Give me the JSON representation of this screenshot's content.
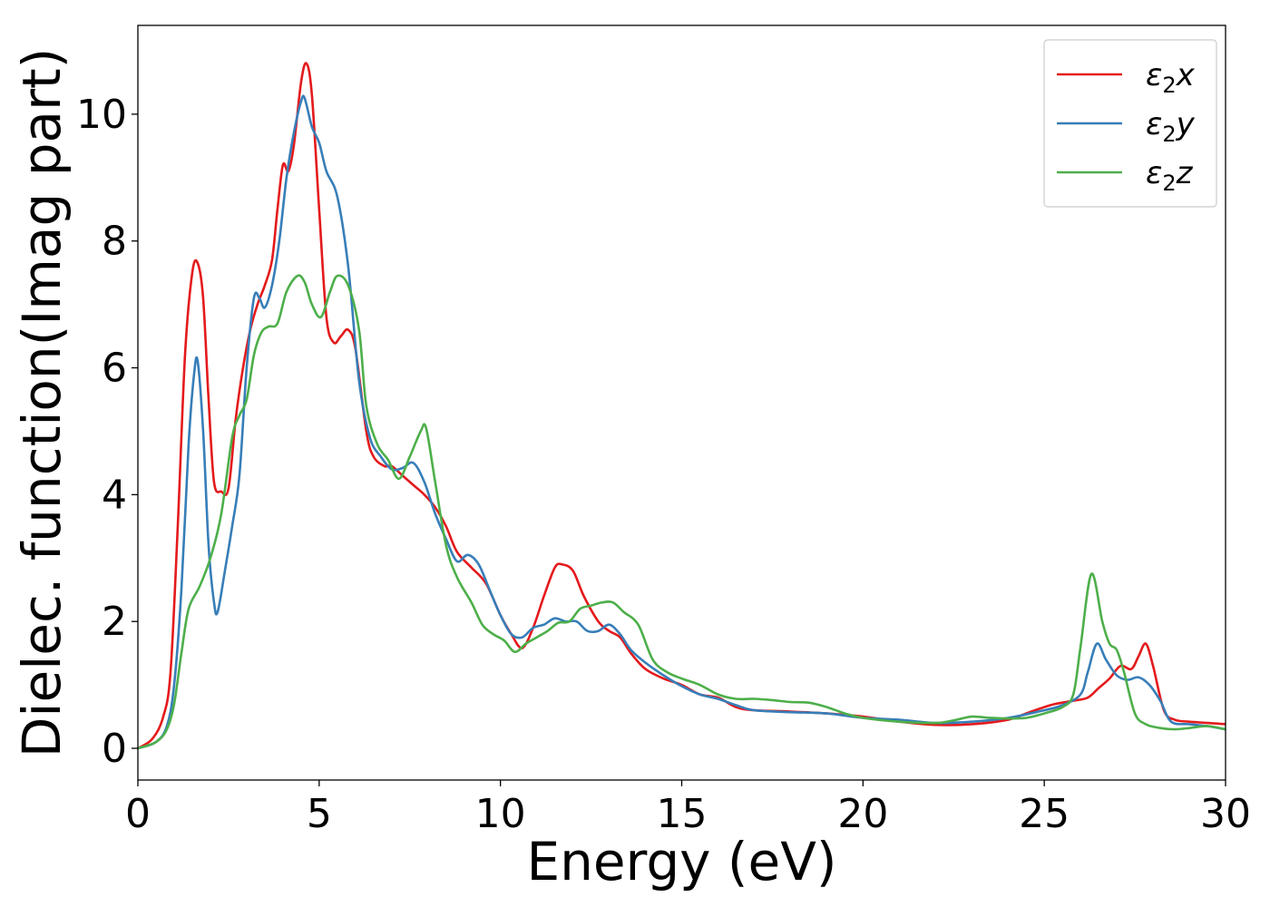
{
  "chart_data": {
    "type": "line",
    "title": "",
    "xlabel": "Energy (eV)",
    "ylabel": "Dielec. function(Imag part)",
    "xlim": [
      0,
      30
    ],
    "ylim": [
      -0.5,
      11.4
    ],
    "xticks": [
      0,
      5,
      10,
      15,
      20,
      25,
      30
    ],
    "yticks": [
      0,
      2,
      4,
      6,
      8,
      10
    ],
    "grid": false,
    "legend_position": "top-right",
    "series": [
      {
        "name": "ε2x",
        "legend": {
          "base": "ε",
          "sub": "2",
          "axis": "x"
        },
        "color": "#e41a1c",
        "points": [
          [
            0,
            0
          ],
          [
            0.4,
            0.15
          ],
          [
            0.7,
            0.5
          ],
          [
            0.9,
            1.2
          ],
          [
            1.1,
            3.5
          ],
          [
            1.3,
            6.2
          ],
          [
            1.5,
            7.5
          ],
          [
            1.65,
            7.65
          ],
          [
            1.8,
            7.1
          ],
          [
            1.95,
            5.5
          ],
          [
            2.1,
            4.2
          ],
          [
            2.3,
            4.05
          ],
          [
            2.5,
            4.1
          ],
          [
            2.7,
            5.2
          ],
          [
            2.9,
            6.0
          ],
          [
            3.1,
            6.6
          ],
          [
            3.3,
            7.0
          ],
          [
            3.5,
            7.3
          ],
          [
            3.7,
            7.7
          ],
          [
            3.85,
            8.5
          ],
          [
            4.0,
            9.2
          ],
          [
            4.15,
            9.1
          ],
          [
            4.3,
            9.5
          ],
          [
            4.5,
            10.5
          ],
          [
            4.65,
            10.8
          ],
          [
            4.8,
            10.3
          ],
          [
            5.0,
            8.5
          ],
          [
            5.2,
            6.8
          ],
          [
            5.4,
            6.4
          ],
          [
            5.6,
            6.5
          ],
          [
            5.8,
            6.6
          ],
          [
            6.0,
            6.3
          ],
          [
            6.3,
            5.0
          ],
          [
            6.5,
            4.6
          ],
          [
            6.8,
            4.45
          ],
          [
            7.0,
            4.45
          ],
          [
            7.3,
            4.3
          ],
          [
            7.6,
            4.15
          ],
          [
            7.9,
            4.0
          ],
          [
            8.2,
            3.8
          ],
          [
            8.5,
            3.5
          ],
          [
            8.8,
            3.1
          ],
          [
            9.2,
            2.85
          ],
          [
            9.6,
            2.6
          ],
          [
            10.0,
            2.1
          ],
          [
            10.3,
            1.8
          ],
          [
            10.6,
            1.58
          ],
          [
            10.9,
            1.9
          ],
          [
            11.2,
            2.4
          ],
          [
            11.5,
            2.85
          ],
          [
            11.7,
            2.9
          ],
          [
            12.0,
            2.8
          ],
          [
            12.3,
            2.4
          ],
          [
            12.7,
            2.0
          ],
          [
            13.0,
            1.85
          ],
          [
            13.3,
            1.75
          ],
          [
            13.6,
            1.5
          ],
          [
            14.0,
            1.25
          ],
          [
            14.5,
            1.1
          ],
          [
            15.0,
            1.0
          ],
          [
            15.5,
            0.85
          ],
          [
            16.0,
            0.8
          ],
          [
            16.5,
            0.65
          ],
          [
            17.0,
            0.6
          ],
          [
            18.0,
            0.58
          ],
          [
            19.0,
            0.55
          ],
          [
            20.0,
            0.5
          ],
          [
            21.0,
            0.42
          ],
          [
            22.0,
            0.37
          ],
          [
            23.0,
            0.38
          ],
          [
            24.0,
            0.45
          ],
          [
            24.5,
            0.55
          ],
          [
            25.0,
            0.65
          ],
          [
            25.3,
            0.7
          ],
          [
            25.8,
            0.75
          ],
          [
            26.2,
            0.8
          ],
          [
            26.5,
            0.95
          ],
          [
            26.8,
            1.1
          ],
          [
            27.1,
            1.3
          ],
          [
            27.4,
            1.25
          ],
          [
            27.6,
            1.45
          ],
          [
            27.8,
            1.65
          ],
          [
            28.0,
            1.3
          ],
          [
            28.3,
            0.6
          ],
          [
            28.6,
            0.45
          ],
          [
            29.0,
            0.42
          ],
          [
            29.5,
            0.4
          ],
          [
            30.0,
            0.38
          ]
        ]
      },
      {
        "name": "ε2y",
        "legend": {
          "base": "ε",
          "sub": "2",
          "axis": "y"
        },
        "color": "#377eb8",
        "points": [
          [
            0,
            0
          ],
          [
            0.5,
            0.1
          ],
          [
            0.8,
            0.35
          ],
          [
            1.0,
            1.0
          ],
          [
            1.2,
            2.5
          ],
          [
            1.4,
            4.8
          ],
          [
            1.55,
            5.9
          ],
          [
            1.65,
            6.1
          ],
          [
            1.8,
            5.0
          ],
          [
            1.95,
            3.2
          ],
          [
            2.1,
            2.3
          ],
          [
            2.2,
            2.15
          ],
          [
            2.4,
            2.8
          ],
          [
            2.6,
            3.5
          ],
          [
            2.8,
            4.3
          ],
          [
            3.0,
            6.0
          ],
          [
            3.2,
            7.1
          ],
          [
            3.35,
            7.1
          ],
          [
            3.5,
            6.95
          ],
          [
            3.7,
            7.3
          ],
          [
            3.9,
            8.0
          ],
          [
            4.1,
            9.0
          ],
          [
            4.3,
            9.7
          ],
          [
            4.5,
            10.2
          ],
          [
            4.6,
            10.25
          ],
          [
            4.8,
            9.8
          ],
          [
            5.0,
            9.55
          ],
          [
            5.2,
            9.1
          ],
          [
            5.5,
            8.7
          ],
          [
            5.8,
            7.6
          ],
          [
            6.1,
            5.8
          ],
          [
            6.4,
            4.9
          ],
          [
            6.7,
            4.6
          ],
          [
            7.0,
            4.4
          ],
          [
            7.3,
            4.42
          ],
          [
            7.6,
            4.5
          ],
          [
            7.9,
            4.2
          ],
          [
            8.2,
            3.7
          ],
          [
            8.5,
            3.3
          ],
          [
            8.8,
            2.95
          ],
          [
            9.1,
            3.05
          ],
          [
            9.4,
            2.9
          ],
          [
            9.7,
            2.5
          ],
          [
            10.0,
            2.1
          ],
          [
            10.3,
            1.8
          ],
          [
            10.6,
            1.75
          ],
          [
            10.9,
            1.9
          ],
          [
            11.2,
            1.95
          ],
          [
            11.5,
            2.05
          ],
          [
            11.8,
            2.0
          ],
          [
            12.1,
            2.0
          ],
          [
            12.4,
            1.85
          ],
          [
            12.7,
            1.85
          ],
          [
            13.0,
            1.95
          ],
          [
            13.3,
            1.8
          ],
          [
            13.6,
            1.55
          ],
          [
            14.0,
            1.35
          ],
          [
            14.5,
            1.15
          ],
          [
            15.0,
            0.98
          ],
          [
            15.5,
            0.85
          ],
          [
            16.0,
            0.78
          ],
          [
            16.5,
            0.68
          ],
          [
            17.0,
            0.6
          ],
          [
            18.0,
            0.57
          ],
          [
            19.0,
            0.55
          ],
          [
            20.0,
            0.48
          ],
          [
            21.0,
            0.45
          ],
          [
            22.0,
            0.4
          ],
          [
            23.0,
            0.42
          ],
          [
            24.0,
            0.48
          ],
          [
            25.0,
            0.6
          ],
          [
            25.5,
            0.68
          ],
          [
            26.0,
            0.85
          ],
          [
            26.2,
            1.2
          ],
          [
            26.45,
            1.65
          ],
          [
            26.7,
            1.4
          ],
          [
            27.0,
            1.15
          ],
          [
            27.3,
            1.08
          ],
          [
            27.6,
            1.12
          ],
          [
            27.9,
            1.0
          ],
          [
            28.2,
            0.75
          ],
          [
            28.5,
            0.42
          ],
          [
            29.0,
            0.38
          ],
          [
            29.5,
            0.35
          ],
          [
            30.0,
            0.3
          ]
        ]
      },
      {
        "name": "ε2z",
        "legend": {
          "base": "ε",
          "sub": "2",
          "axis": "z"
        },
        "color": "#4daf4a",
        "points": [
          [
            0,
            0
          ],
          [
            0.5,
            0.1
          ],
          [
            0.8,
            0.3
          ],
          [
            1.0,
            0.7
          ],
          [
            1.2,
            1.5
          ],
          [
            1.4,
            2.2
          ],
          [
            1.7,
            2.55
          ],
          [
            2.0,
            3.0
          ],
          [
            2.3,
            3.7
          ],
          [
            2.6,
            4.9
          ],
          [
            2.8,
            5.25
          ],
          [
            3.0,
            5.5
          ],
          [
            3.2,
            6.2
          ],
          [
            3.4,
            6.55
          ],
          [
            3.6,
            6.65
          ],
          [
            3.85,
            6.7
          ],
          [
            4.1,
            7.2
          ],
          [
            4.4,
            7.45
          ],
          [
            4.6,
            7.35
          ],
          [
            4.8,
            7.0
          ],
          [
            5.05,
            6.8
          ],
          [
            5.3,
            7.2
          ],
          [
            5.5,
            7.45
          ],
          [
            5.8,
            7.3
          ],
          [
            6.1,
            6.6
          ],
          [
            6.3,
            5.4
          ],
          [
            6.6,
            4.8
          ],
          [
            6.9,
            4.55
          ],
          [
            7.2,
            4.25
          ],
          [
            7.5,
            4.6
          ],
          [
            7.8,
            5.0
          ],
          [
            7.95,
            5.05
          ],
          [
            8.2,
            4.2
          ],
          [
            8.5,
            3.2
          ],
          [
            8.8,
            2.7
          ],
          [
            9.2,
            2.3
          ],
          [
            9.5,
            1.95
          ],
          [
            9.8,
            1.8
          ],
          [
            10.1,
            1.7
          ],
          [
            10.4,
            1.52
          ],
          [
            10.7,
            1.65
          ],
          [
            11.0,
            1.75
          ],
          [
            11.3,
            1.85
          ],
          [
            11.6,
            1.98
          ],
          [
            11.9,
            2.0
          ],
          [
            12.2,
            2.2
          ],
          [
            12.5,
            2.25
          ],
          [
            12.8,
            2.3
          ],
          [
            13.1,
            2.3
          ],
          [
            13.4,
            2.15
          ],
          [
            13.8,
            1.95
          ],
          [
            14.2,
            1.4
          ],
          [
            14.6,
            1.2
          ],
          [
            15.0,
            1.1
          ],
          [
            15.5,
            1.0
          ],
          [
            16.0,
            0.85
          ],
          [
            16.5,
            0.78
          ],
          [
            17.0,
            0.78
          ],
          [
            17.5,
            0.76
          ],
          [
            18.0,
            0.73
          ],
          [
            18.5,
            0.72
          ],
          [
            19.0,
            0.65
          ],
          [
            19.5,
            0.55
          ],
          [
            20.0,
            0.48
          ],
          [
            21.0,
            0.42
          ],
          [
            22.0,
            0.4
          ],
          [
            22.5,
            0.44
          ],
          [
            23.0,
            0.5
          ],
          [
            23.5,
            0.48
          ],
          [
            24.0,
            0.47
          ],
          [
            24.5,
            0.48
          ],
          [
            25.0,
            0.55
          ],
          [
            25.5,
            0.65
          ],
          [
            25.8,
            0.85
          ],
          [
            26.0,
            1.6
          ],
          [
            26.3,
            2.75
          ],
          [
            26.6,
            2.0
          ],
          [
            26.8,
            1.65
          ],
          [
            27.0,
            1.55
          ],
          [
            27.2,
            1.2
          ],
          [
            27.5,
            0.55
          ],
          [
            27.8,
            0.38
          ],
          [
            28.2,
            0.32
          ],
          [
            28.6,
            0.3
          ],
          [
            29.0,
            0.32
          ],
          [
            29.5,
            0.35
          ],
          [
            30.0,
            0.3
          ]
        ]
      }
    ]
  }
}
